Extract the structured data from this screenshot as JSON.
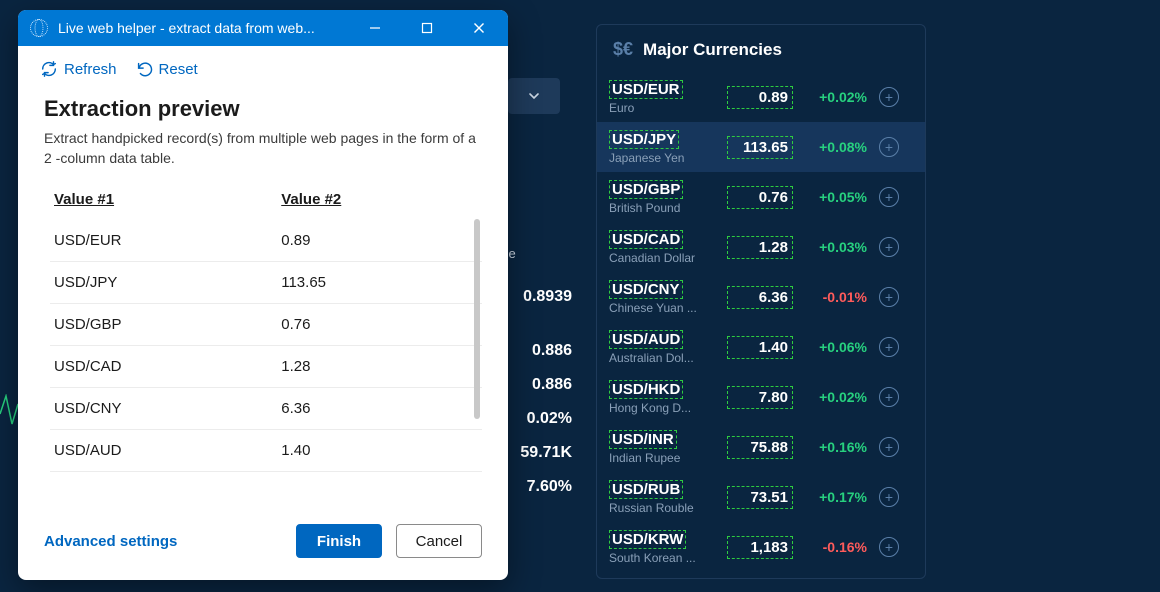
{
  "dialog": {
    "title": "Live web helper - extract data from web...",
    "toolbar": {
      "refresh": "Refresh",
      "reset": "Reset"
    },
    "heading": "Extraction preview",
    "description": "Extract handpicked record(s) from multiple web pages in the form of a 2 -column data table.",
    "columns": [
      "Value #1",
      "Value #2"
    ],
    "rows": [
      [
        "USD/EUR",
        "0.89"
      ],
      [
        "USD/JPY",
        "113.65"
      ],
      [
        "USD/GBP",
        "0.76"
      ],
      [
        "USD/CAD",
        "1.28"
      ],
      [
        "USD/CNY",
        "6.36"
      ],
      [
        "USD/AUD",
        "1.40"
      ]
    ],
    "footer": {
      "advanced": "Advanced settings",
      "finish": "Finish",
      "cancel": "Cancel"
    }
  },
  "currencyPanel": {
    "icon": "$€",
    "title": "Major Currencies",
    "highlightIndex": 1,
    "colors": {
      "up": "#27d17f",
      "down": "#ff5b5b"
    },
    "rows": [
      {
        "pair": "USD/EUR",
        "sub": "Euro",
        "rate": "0.89",
        "change": "+0.02%",
        "dir": "up"
      },
      {
        "pair": "USD/JPY",
        "sub": "Japanese Yen",
        "rate": "113.65",
        "change": "+0.08%",
        "dir": "up"
      },
      {
        "pair": "USD/GBP",
        "sub": "British Pound",
        "rate": "0.76",
        "change": "+0.05%",
        "dir": "up"
      },
      {
        "pair": "USD/CAD",
        "sub": "Canadian Dollar",
        "rate": "1.28",
        "change": "+0.03%",
        "dir": "up"
      },
      {
        "pair": "USD/CNY",
        "sub": "Chinese Yuan ...",
        "rate": "6.36",
        "change": "-0.01%",
        "dir": "down"
      },
      {
        "pair": "USD/AUD",
        "sub": "Australian Dol...",
        "rate": "1.40",
        "change": "+0.06%",
        "dir": "up"
      },
      {
        "pair": "USD/HKD",
        "sub": "Hong Kong D...",
        "rate": "7.80",
        "change": "+0.02%",
        "dir": "up"
      },
      {
        "pair": "USD/INR",
        "sub": "Indian Rupee",
        "rate": "75.88",
        "change": "+0.16%",
        "dir": "up"
      },
      {
        "pair": "USD/RUB",
        "sub": "Russian Rouble",
        "rate": "73.51",
        "change": "+0.17%",
        "dir": "up"
      },
      {
        "pair": "USD/KRW",
        "sub": "South Korean ...",
        "rate": "1,183",
        "change": "-0.16%",
        "dir": "down"
      }
    ]
  },
  "bgStats": {
    "label": "nge",
    "values": [
      "0.8939",
      "0.886",
      "0.886",
      "0.02%",
      "59.71K",
      "7.60%"
    ]
  }
}
